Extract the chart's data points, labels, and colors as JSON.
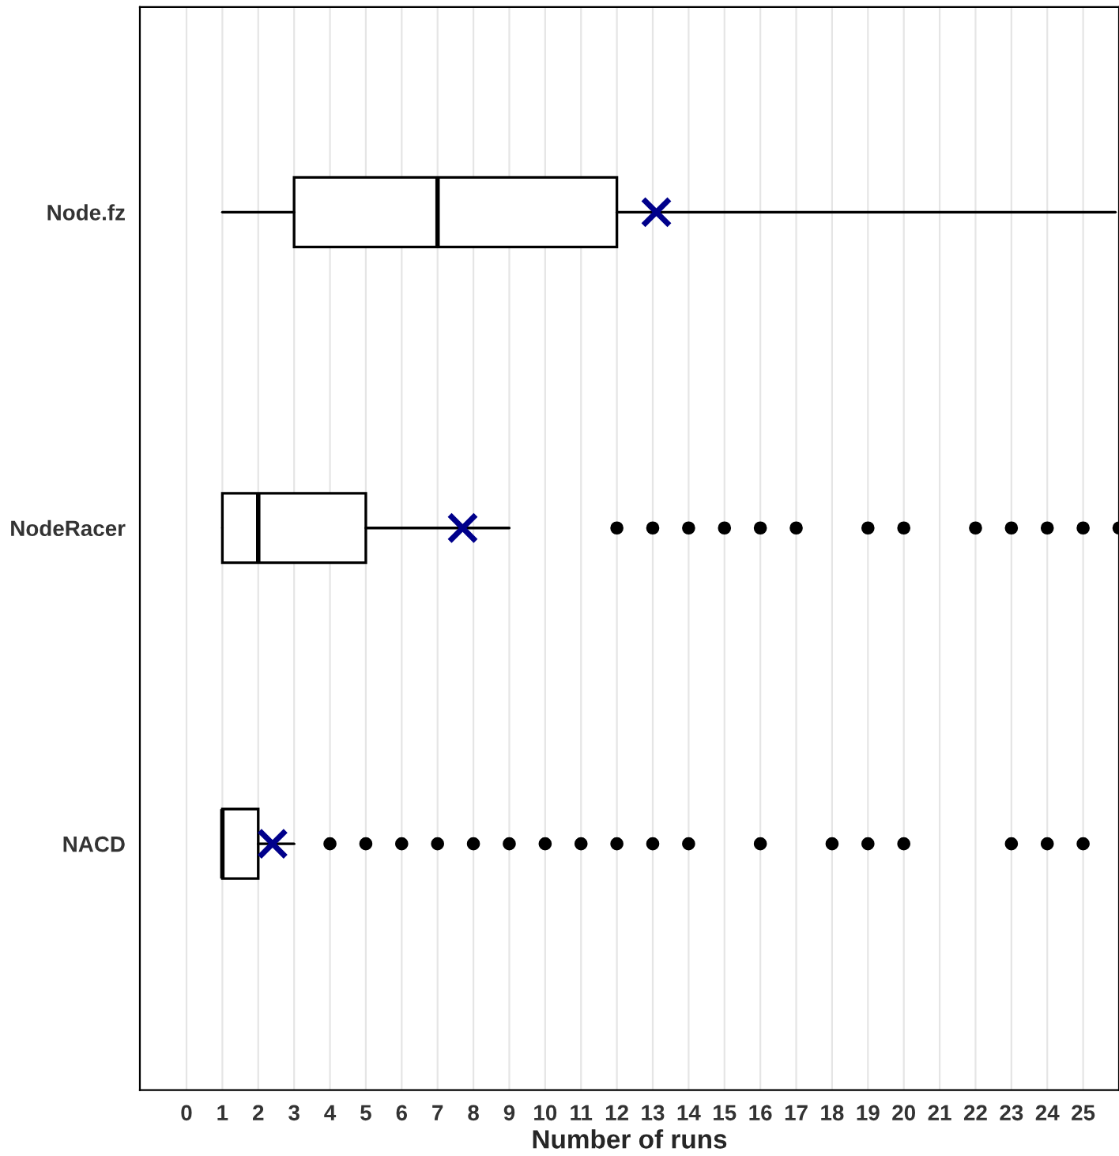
{
  "chart_data": {
    "type": "box",
    "orientation": "horizontal",
    "xlabel": "Number of runs",
    "categories": [
      "Node.fz",
      "NodeRacer",
      "NACD"
    ],
    "boxes": [
      {
        "low": 1,
        "q1": 3,
        "median": 7,
        "q3": 12,
        "high": 25.9,
        "mean": 13.1
      },
      {
        "low": 1,
        "q1": 1,
        "median": 2,
        "q3": 5,
        "high": 9,
        "mean": 7.7,
        "outliers": [
          12,
          13,
          14,
          15,
          16,
          17,
          19,
          20,
          22,
          23,
          24,
          25,
          26
        ]
      },
      {
        "low": 1,
        "q1": 1,
        "median": 1,
        "q3": 2,
        "high": 3,
        "mean": 2.4,
        "outliers": [
          4,
          5,
          6,
          7,
          8,
          9,
          10,
          11,
          12,
          13,
          14,
          16,
          18,
          19,
          20,
          23,
          24,
          25
        ]
      }
    ],
    "color": "#ffffff",
    "marker": "cross",
    "xlim": [
      -1.3,
      26
    ],
    "xticks": [
      0,
      1,
      2,
      3,
      4,
      5,
      6,
      7,
      8,
      9,
      10,
      11,
      12,
      13,
      14,
      15,
      16,
      17,
      18,
      19,
      20,
      21,
      22,
      23,
      24,
      25
    ],
    "grid": "x"
  }
}
